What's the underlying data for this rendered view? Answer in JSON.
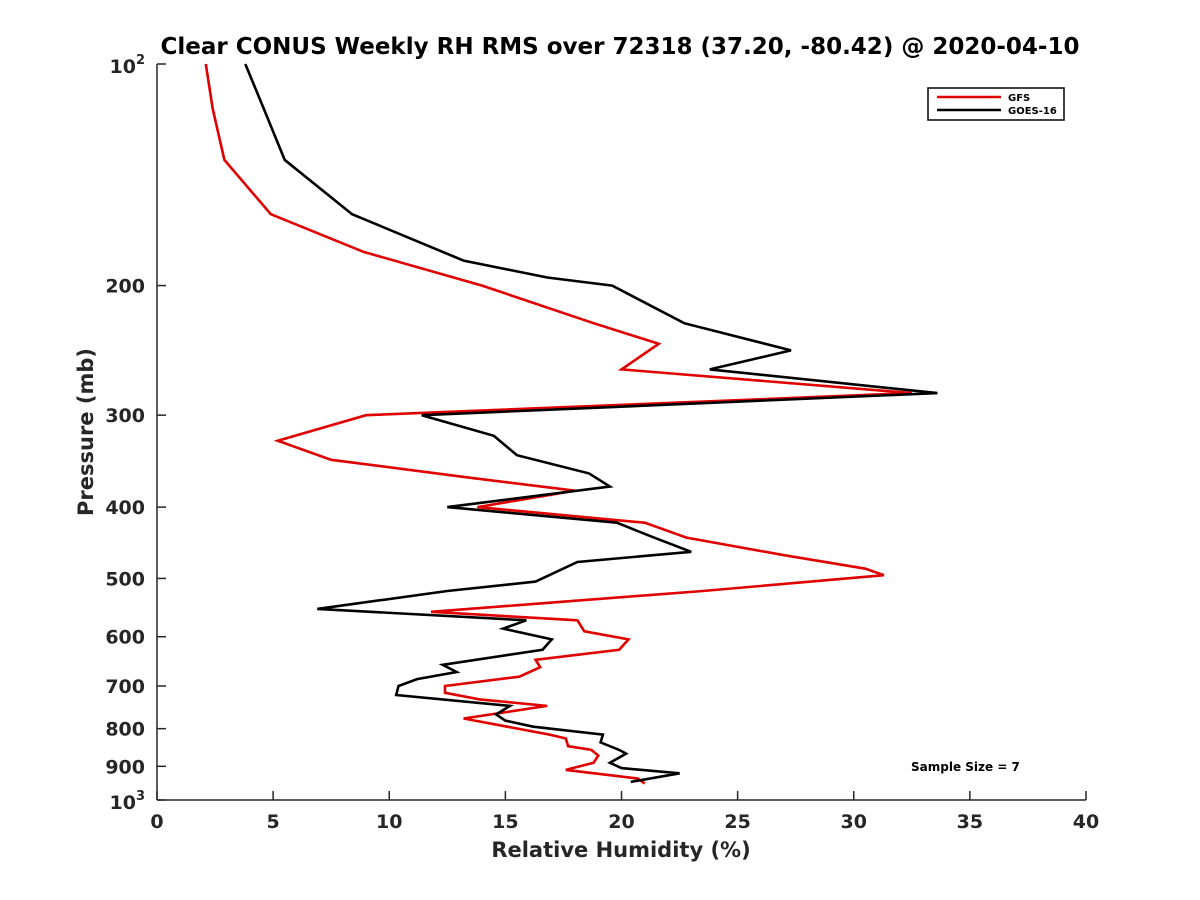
{
  "chart_data": {
    "type": "line",
    "title": "Clear CONUS Weekly RH RMS over 72318 (37.20, -80.42) @ 2020-04-10",
    "xlabel": "Relative Humidity (%)",
    "ylabel": "Pressure (mb)",
    "xlim": [
      0,
      40
    ],
    "ylim": [
      100,
      1000
    ],
    "y_scale": "log",
    "y_reversed": true,
    "x_ticks": [
      "0",
      "5",
      "10",
      "15",
      "20",
      "25",
      "30",
      "35",
      "40"
    ],
    "y_ticks": [
      {
        "value": 100,
        "base": "10",
        "exp": "2"
      },
      {
        "value": 200,
        "label": "200"
      },
      {
        "value": 300,
        "label": "300"
      },
      {
        "value": 400,
        "label": "400"
      },
      {
        "value": 500,
        "label": "500"
      },
      {
        "value": 600,
        "label": "600"
      },
      {
        "value": 700,
        "label": "700"
      },
      {
        "value": 800,
        "label": "800"
      },
      {
        "value": 900,
        "label": "900"
      },
      {
        "value": 1000,
        "base": "10",
        "exp": "3"
      }
    ],
    "grid": false,
    "legend_position": "top-right",
    "annotation": "Sample Size = 7",
    "series": [
      {
        "name": "GFS",
        "color": "#e00000",
        "points": [
          [
            2.1,
            100
          ],
          [
            2.4,
            115
          ],
          [
            2.9,
            135
          ],
          [
            4.9,
            160
          ],
          [
            8.9,
            180
          ],
          [
            14.0,
            200
          ],
          [
            18.8,
            225
          ],
          [
            21.6,
            240
          ],
          [
            20.0,
            260
          ],
          [
            32.5,
            280
          ],
          [
            9.0,
            300
          ],
          [
            5.2,
            325
          ],
          [
            7.5,
            345
          ],
          [
            13.5,
            365
          ],
          [
            18.0,
            380
          ],
          [
            13.8,
            400
          ],
          [
            21.0,
            420
          ],
          [
            22.8,
            440
          ],
          [
            27.0,
            465
          ],
          [
            30.5,
            485
          ],
          [
            31.3,
            495
          ],
          [
            23.5,
            520
          ],
          [
            11.8,
            555
          ],
          [
            18.1,
            570
          ],
          [
            18.4,
            590
          ],
          [
            20.3,
            605
          ],
          [
            19.9,
            625
          ],
          [
            16.3,
            645
          ],
          [
            16.5,
            660
          ],
          [
            15.6,
            680
          ],
          [
            12.4,
            700
          ],
          [
            12.4,
            715
          ],
          [
            13.9,
            730
          ],
          [
            16.8,
            745
          ],
          [
            13.2,
            775
          ],
          [
            16.9,
            815
          ],
          [
            17.6,
            825
          ],
          [
            17.7,
            845
          ],
          [
            18.7,
            855
          ],
          [
            19.0,
            870
          ],
          [
            18.8,
            890
          ],
          [
            17.6,
            910
          ],
          [
            20.7,
            935
          ],
          [
            21.0,
            950
          ]
        ]
      },
      {
        "name": "GOES-16",
        "color": "#000000",
        "points": [
          [
            3.8,
            100
          ],
          [
            4.6,
            115
          ],
          [
            5.5,
            135
          ],
          [
            8.4,
            160
          ],
          [
            13.2,
            185
          ],
          [
            16.8,
            195
          ],
          [
            19.6,
            200
          ],
          [
            22.7,
            225
          ],
          [
            27.3,
            245
          ],
          [
            23.8,
            260
          ],
          [
            33.6,
            280
          ],
          [
            11.4,
            300
          ],
          [
            14.5,
            320
          ],
          [
            15.5,
            340
          ],
          [
            18.6,
            360
          ],
          [
            19.5,
            375
          ],
          [
            12.5,
            400
          ],
          [
            19.8,
            420
          ],
          [
            21.4,
            440
          ],
          [
            23.0,
            460
          ],
          [
            18.1,
            475
          ],
          [
            16.3,
            505
          ],
          [
            12.5,
            520
          ],
          [
            6.9,
            550
          ],
          [
            15.9,
            570
          ],
          [
            14.9,
            585
          ],
          [
            17.0,
            605
          ],
          [
            16.6,
            625
          ],
          [
            12.3,
            655
          ],
          [
            12.9,
            670
          ],
          [
            11.2,
            685
          ],
          [
            10.4,
            700
          ],
          [
            10.3,
            720
          ],
          [
            15.2,
            745
          ],
          [
            14.6,
            765
          ],
          [
            15.0,
            780
          ],
          [
            16.2,
            795
          ],
          [
            19.2,
            815
          ],
          [
            19.1,
            835
          ],
          [
            19.9,
            855
          ],
          [
            20.2,
            865
          ],
          [
            19.5,
            890
          ],
          [
            20.0,
            905
          ],
          [
            22.5,
            920
          ],
          [
            20.4,
            945
          ]
        ]
      }
    ]
  }
}
